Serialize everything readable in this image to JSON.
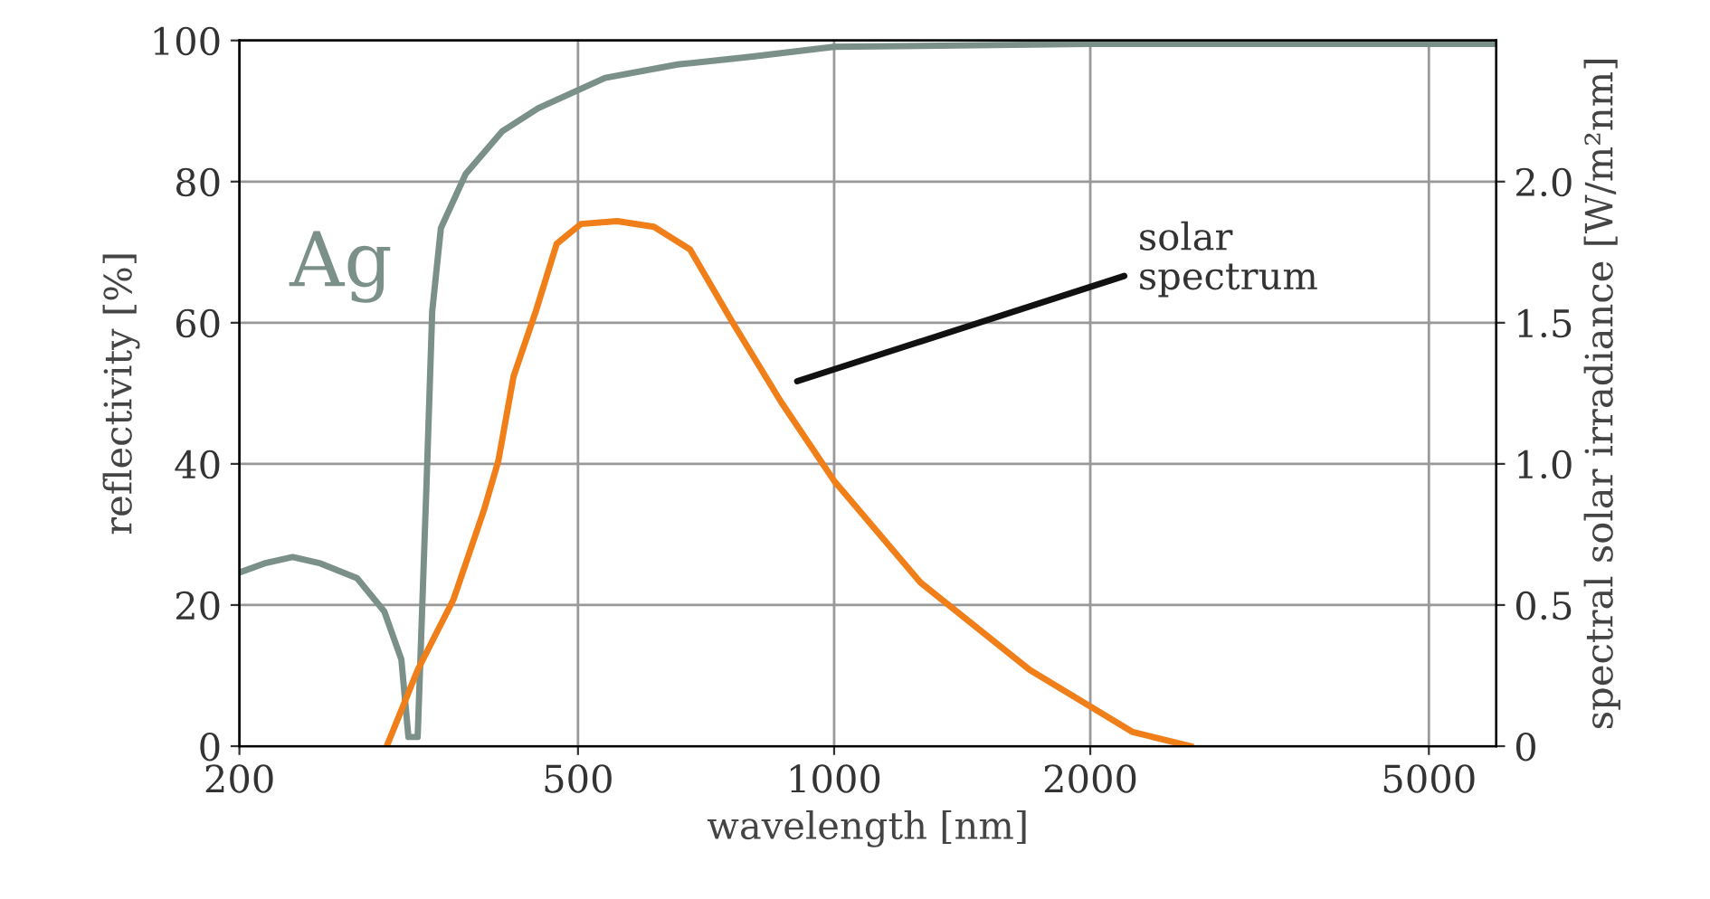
{
  "chart_data": {
    "type": "line",
    "xlabel": "wavelength [nm]",
    "ylabel": "reflectivity [%]",
    "y2label": "spectral solar irradiance [W/m²nm]",
    "log": "x",
    "grid": true,
    "legend": false,
    "marker": "none",
    "line_style": "solid",
    "xlim": [
      200,
      6000
    ],
    "xticks": [
      200,
      500,
      1000,
      2000,
      5000
    ],
    "ylim": [
      0,
      100
    ],
    "yticks": [
      0,
      20,
      40,
      60,
      80,
      100
    ],
    "y2lim": [
      0,
      2.5
    ],
    "y2ticks": [
      0,
      0.5,
      {
        "value": 1,
        "label": "1.0"
      },
      1.5,
      {
        "value": 2,
        "label": "2.0"
      }
    ],
    "series": [
      {
        "name": "Ag",
        "color": "#7a9088",
        "x": [
          200,
          214,
          231,
          249,
          275,
          296,
          310,
          316,
          324,
          332,
          337,
          345,
          369,
          407,
          449,
          538,
          655,
          798,
          1000,
          2000,
          6000
        ],
        "values": [
          24.6,
          25.9,
          26.8,
          25.9,
          23.8,
          19.1,
          12.3,
          1.3,
          1.3,
          37.8,
          61.6,
          73.4,
          81.1,
          87.1,
          90.4,
          94.7,
          96.6,
          97.7,
          99.1,
          99.5,
          99.5
        ]
      },
      {
        "color": "#f07f1a",
        "axis": "y2",
        "x": [
          298,
          324,
          357,
          388,
          403,
          420,
          446,
          472,
          504,
          556,
          614,
          677,
          760,
          866,
          1000,
          1263,
          1698,
          2244,
          2623
        ],
        "values": [
          0,
          0.27,
          0.52,
          0.84,
          1.01,
          1.31,
          1.54,
          1.78,
          1.85,
          1.86,
          1.84,
          1.76,
          1.5,
          1.22,
          0.94,
          0.58,
          0.27,
          0.05,
          0
        ]
      }
    ],
    "annotations": [
      "solar\nspectrum"
    ]
  }
}
